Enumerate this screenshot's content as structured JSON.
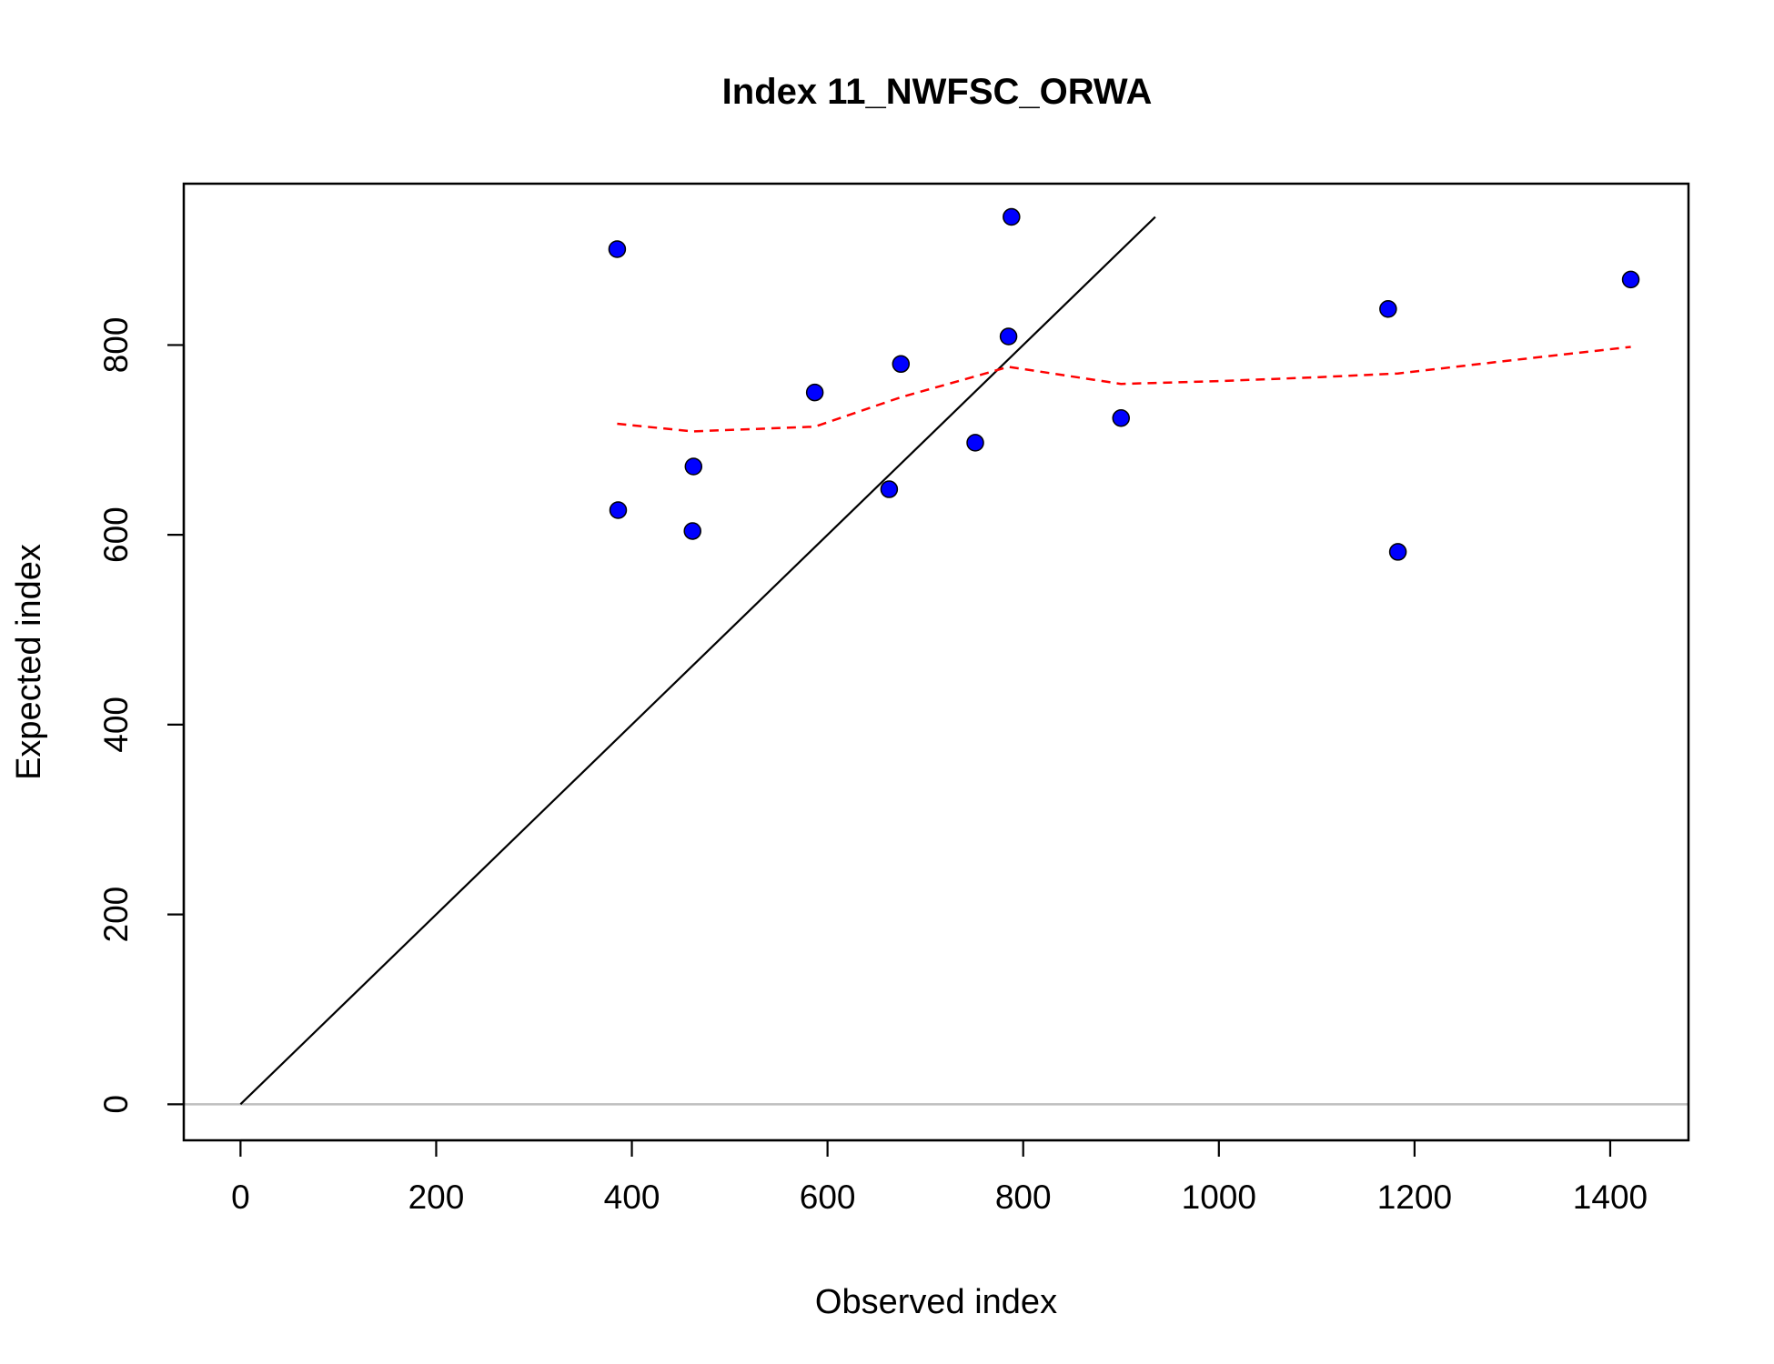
{
  "chart_data": {
    "type": "scatter",
    "title": "Index 11_NWFSC_ORWA",
    "xlabel": "Observed index",
    "ylabel": "Expected index",
    "xlim": [
      -58,
      1480
    ],
    "ylim": [
      -38,
      970
    ],
    "x_ticks": [
      0,
      200,
      400,
      600,
      800,
      1000,
      1200,
      1400
    ],
    "y_ticks": [
      0,
      200,
      400,
      600,
      800
    ],
    "grid": false,
    "points": {
      "color": "#0000ff",
      "x": [
        385,
        386,
        462,
        463,
        587,
        663,
        675,
        751,
        785,
        788,
        900,
        1173,
        1183,
        1421
      ],
      "y": [
        901,
        626,
        604,
        672,
        750,
        648,
        780,
        697,
        809,
        935,
        723,
        838,
        582,
        869
      ]
    },
    "identity_line": {
      "color": "#000000",
      "x": [
        0,
        935
      ],
      "y": [
        0,
        935
      ]
    },
    "smoother": {
      "color": "#ff0000",
      "style": "dashed",
      "x": [
        385,
        462,
        587,
        675,
        751,
        785,
        900,
        1000,
        1100,
        1183,
        1300,
        1421
      ],
      "y": [
        717,
        709,
        714,
        745,
        767,
        777,
        759,
        762,
        766,
        770,
        784,
        798
      ]
    },
    "zero_line": {
      "color": "#bebebe",
      "y": 0
    }
  }
}
